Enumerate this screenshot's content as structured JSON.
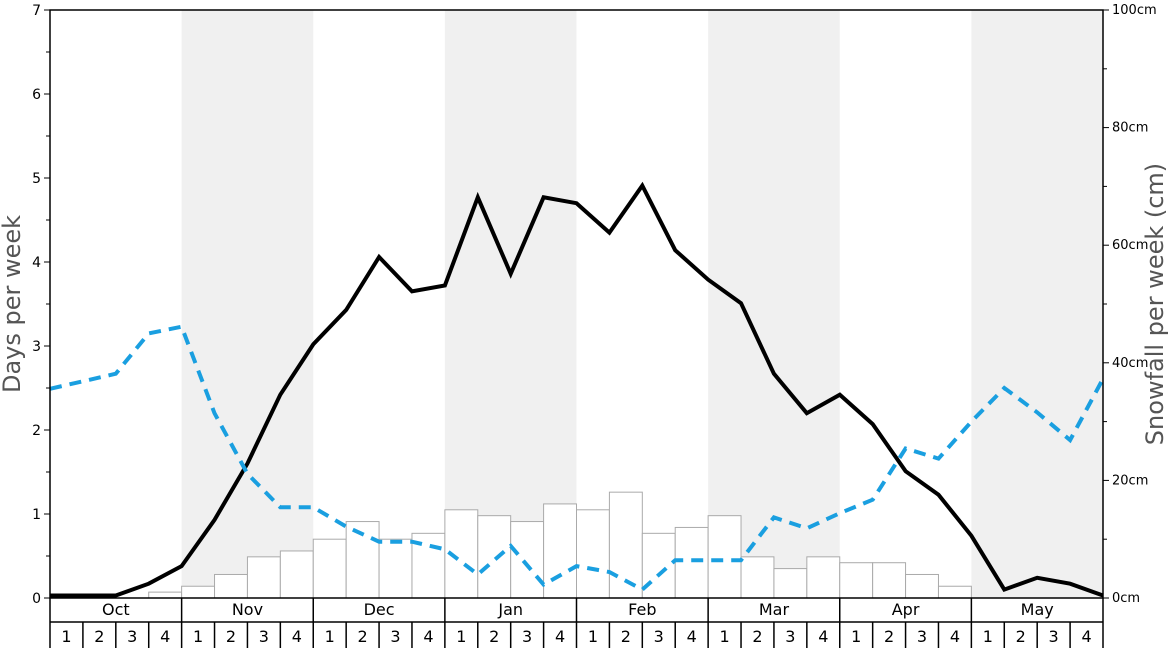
{
  "chart_data": {
    "type": "bar",
    "y_left": {
      "label": "Days per week",
      "range": [
        0,
        7
      ],
      "ticks": [
        "0",
        "1",
        "2",
        "3",
        "4",
        "5",
        "6",
        "7"
      ]
    },
    "y_right": {
      "label": "Snowfall per week (cm)",
      "range": [
        0,
        100
      ],
      "ticks": [
        "0cm",
        "20cm",
        "40cm",
        "60cm",
        "80cm",
        "100cm"
      ]
    },
    "months": [
      "Oct",
      "Nov",
      "Dec",
      "Jan",
      "Feb",
      "Mar",
      "Apr",
      "May"
    ],
    "weeks": [
      "1",
      "2",
      "3",
      "4"
    ],
    "series": [
      {
        "kind": "bars",
        "axis": "right",
        "color": "#ffffff",
        "stroke": "#aaaaaa",
        "values": [
          0,
          0,
          0,
          1.0,
          2.0,
          4.0,
          7.0,
          8.0,
          10.0,
          13.0,
          10.0,
          11.0,
          15.0,
          14.0,
          13.0,
          16.0,
          15.0,
          18.0,
          11.0,
          12.0,
          14.0,
          7.0,
          5.0,
          7.0,
          6.0,
          6.0,
          4.0,
          2.0,
          0,
          0,
          0,
          0
        ]
      },
      {
        "kind": "line",
        "axis": "left",
        "color": "#000000",
        "dashed": false,
        "values": [
          0.03,
          0.03,
          0.03,
          0.17,
          0.38,
          0.93,
          1.6,
          2.42,
          3.02,
          3.43,
          4.06,
          3.65,
          3.72,
          4.77,
          3.86,
          4.77,
          4.7,
          4.35,
          4.91,
          4.14,
          3.79,
          3.51,
          2.67,
          2.2,
          2.42,
          2.07,
          1.51,
          1.23,
          0.74,
          0.1,
          0.24,
          0.17,
          0.03
        ]
      },
      {
        "kind": "line",
        "axis": "left",
        "color": "#1a9fe0",
        "dashed": true,
        "values": [
          2.49,
          2.58,
          2.67,
          3.15,
          3.23,
          2.2,
          1.48,
          1.08,
          1.08,
          0.85,
          0.67,
          0.67,
          0.58,
          0.28,
          0.62,
          0.16,
          0.38,
          0.31,
          0.1,
          0.45,
          0.45,
          0.45,
          0.96,
          0.83,
          1.01,
          1.17,
          1.78,
          1.66,
          2.1,
          2.5,
          2.21,
          1.88,
          2.61
        ]
      }
    ],
    "shaded_months": [
      "Nov",
      "Jan",
      "Mar",
      "May"
    ],
    "grid": false
  }
}
